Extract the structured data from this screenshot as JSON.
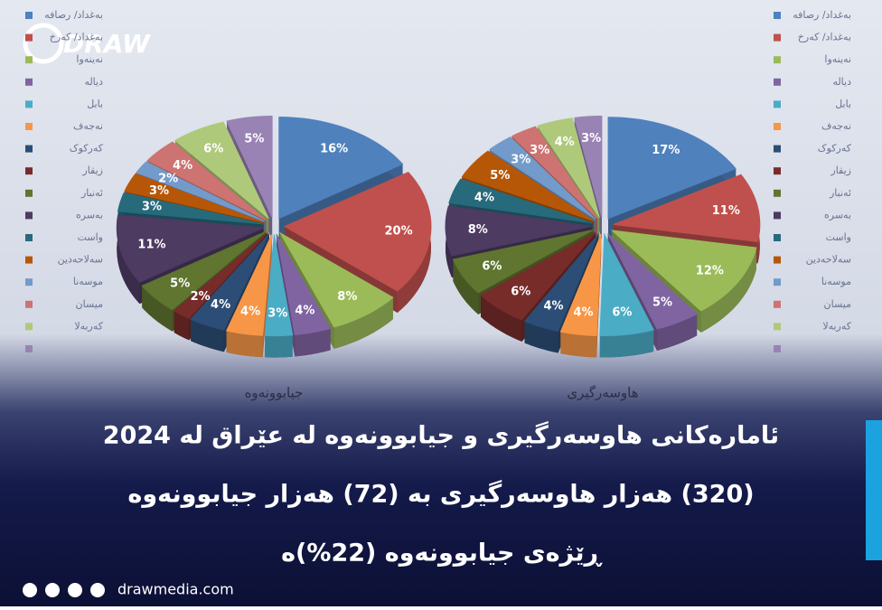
{
  "logo": "DRAW",
  "headline": [
    "ئامارەکانی هاوسەرگیری و جیابوونەوە لە عێراق لە 2024",
    "(320) هەزار هاوسەرگیری بە (72) هەزار جیابوونەوە",
    "ڕێژەی جیابوونەوە (22%)ە"
  ],
  "footer": "drawmedia.com",
  "chart_data": [
    {
      "type": "pie",
      "title": "جیابوونەوە",
      "categories": [
        "بەغداد/ رصافە",
        "بەغداد/ کەرخ",
        "نەینەوا",
        "دیالە",
        "بابل",
        "نەجەف",
        "کەرکوک",
        "زیقار",
        "ئەنبار",
        "بەسرە",
        "واست",
        "سەلاحەدین",
        "موسەنا",
        "میسان",
        "کەربەلا",
        null
      ],
      "values": [
        16,
        20,
        8,
        4,
        3,
        4,
        4,
        2,
        5,
        11,
        3,
        3,
        2,
        4,
        6,
        5
      ],
      "value_labels": [
        "16%",
        "20%",
        "8%",
        "4%",
        "3%",
        "4%",
        "4%",
        "2%",
        "5%",
        "11%",
        "3%",
        "3%",
        "2%",
        "4%",
        "6%",
        "5%"
      ],
      "colors": [
        "#4f81bd",
        "#c0504d",
        "#9bbb59",
        "#8064a2",
        "#4bacc6",
        "#f79646",
        "#2c4d75",
        "#772c2a",
        "#5f7530",
        "#4d3b62",
        "#276a7c",
        "#b65708",
        "#729aca",
        "#cd7371",
        "#afc97a",
        "#9983b5"
      ]
    },
    {
      "type": "pie",
      "title": "هاوسەرگیری",
      "categories": [
        "بەغداد/ رصافە",
        "بەغداد/ کەرخ",
        "نەینەوا",
        "دیالە",
        "بابل",
        "نەجەف",
        "کەرکوک",
        "زیقار",
        "ئەنبار",
        "بەسرە",
        "واست",
        "سەلاحەدین",
        "موسەنا",
        "میسان",
        "کەربەلا",
        null
      ],
      "values": [
        17,
        11,
        12,
        5,
        6,
        4,
        4,
        6,
        6,
        8,
        4,
        5,
        3,
        3,
        4,
        3
      ],
      "value_labels": [
        "17%",
        "11%",
        "12%",
        "5%",
        "6%",
        "4%",
        "4%",
        "6%",
        "6%",
        "8%",
        "4%",
        "5%",
        "3%",
        "3%",
        "4%",
        "3%"
      ],
      "colors": [
        "#4f81bd",
        "#c0504d",
        "#9bbb59",
        "#8064a2",
        "#4bacc6",
        "#f79646",
        "#2c4d75",
        "#772c2a",
        "#5f7530",
        "#4d3b62",
        "#276a7c",
        "#b65708",
        "#729aca",
        "#cd7371",
        "#afc97a",
        "#9983b5"
      ]
    }
  ]
}
